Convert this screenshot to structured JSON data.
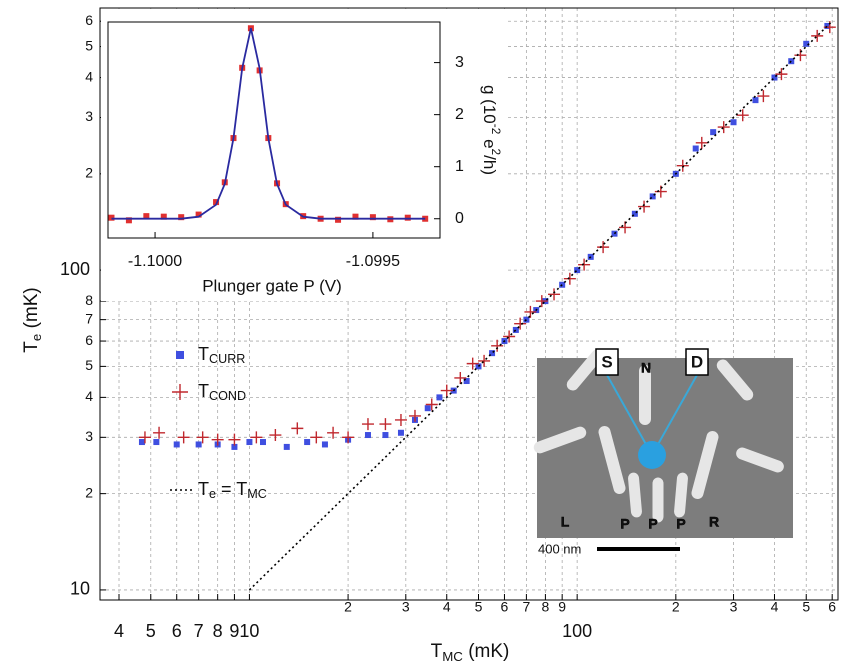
{
  "chart_data": [
    {
      "type": "scatter",
      "x_label": "TMC (mK)",
      "y_label": "Te (mK)",
      "log_x": true,
      "log_y": true,
      "grid": true,
      "xlim": [
        3.5,
        625
      ],
      "ylim": [
        9.3,
        660
      ],
      "xticks": [
        4,
        5,
        6,
        7,
        8,
        9,
        10,
        {
          "value": 20,
          "label": "2"
        },
        {
          "value": 30,
          "label": "3"
        },
        {
          "value": 40,
          "label": "4"
        },
        {
          "value": 50,
          "label": "5"
        },
        {
          "value": 60,
          "label": "6"
        },
        {
          "value": 70,
          "label": "7"
        },
        {
          "value": 80,
          "label": "8"
        },
        {
          "value": 90,
          "label": "9"
        },
        100,
        {
          "value": 200,
          "label": "2"
        },
        {
          "value": 300,
          "label": "3"
        },
        {
          "value": 400,
          "label": "4"
        },
        {
          "value": 500,
          "label": "5"
        },
        {
          "value": 600,
          "label": "6"
        }
      ],
      "yticks": [
        10,
        {
          "value": 20,
          "label": "2"
        },
        {
          "value": 30,
          "label": "3"
        },
        {
          "value": 40,
          "label": "4"
        },
        {
          "value": 50,
          "label": "5"
        },
        {
          "value": 60,
          "label": "6"
        },
        {
          "value": 70,
          "label": "7"
        },
        {
          "value": 80,
          "label": "8"
        },
        100,
        {
          "value": 200,
          "label": "2"
        },
        {
          "value": 300,
          "label": "3"
        },
        {
          "value": 400,
          "label": "4"
        },
        {
          "value": 500,
          "label": "5"
        },
        {
          "value": 600,
          "label": "6"
        }
      ],
      "series": [
        {
          "name": "TCURR",
          "color": "#3f4fe0",
          "marker": "square",
          "x": [
            4.7,
            5.2,
            6,
            7,
            8,
            9,
            10,
            11,
            13,
            15,
            17,
            20,
            23,
            26,
            29,
            32,
            35,
            38,
            42,
            46,
            50,
            55,
            60,
            65,
            70,
            75,
            80,
            90,
            100,
            110,
            130,
            150,
            170,
            200,
            230,
            260,
            300,
            350,
            400,
            450,
            500,
            580
          ],
          "values": [
            29,
            29,
            28.5,
            28.5,
            28.5,
            28,
            29,
            29,
            28,
            29,
            28.5,
            29.5,
            30.5,
            30.5,
            31,
            34,
            37,
            40,
            42,
            45,
            50,
            55,
            60,
            65,
            70,
            75,
            80,
            90,
            100,
            110,
            130,
            150,
            170,
            200,
            240,
            270,
            290,
            340,
            400,
            450,
            510,
            580
          ]
        },
        {
          "name": "TCOND",
          "color": "#c0282e",
          "marker": "plus",
          "x": [
            4.8,
            5.3,
            6.3,
            7.2,
            8,
            9,
            10.5,
            12,
            14,
            16,
            18,
            20,
            23,
            26,
            29,
            32,
            36,
            40,
            44,
            48,
            52,
            57,
            62,
            67,
            72,
            78,
            85,
            95,
            105,
            120,
            140,
            160,
            180,
            210,
            240,
            280,
            320,
            370,
            420,
            480,
            540,
            590
          ],
          "values": [
            30,
            31,
            30,
            30,
            29.5,
            29.5,
            30,
            30.5,
            32,
            30,
            31,
            30,
            33,
            33,
            34,
            35,
            38,
            42,
            46,
            51,
            52,
            58,
            62,
            68,
            74,
            80,
            84,
            94,
            104,
            118,
            136,
            158,
            176,
            212,
            250,
            280,
            305,
            350,
            410,
            470,
            540,
            575
          ]
        },
        {
          "name": "Te = TMC",
          "color": "#000000",
          "style": "dotted",
          "x": [
            10,
            600
          ],
          "values": [
            10,
            600
          ]
        }
      ]
    },
    {
      "type": "scatter",
      "x_label": "Plunger gate P (V)",
      "y2_label": "g (10-2 e2/h)",
      "xlim": [
        -1.100108,
        -1.099346
      ],
      "y2lim": [
        -0.37,
        3.78
      ],
      "xticks": [
        {
          "value": -1.1,
          "label": "-1.1000"
        },
        {
          "value": -1.0995,
          "label": "-1.0995"
        }
      ],
      "y2ticks": [
        0,
        1,
        2,
        3
      ],
      "x": [
        -1.1001,
        -1.10006,
        -1.10002,
        -1.09998,
        -1.09994,
        -1.0999,
        -1.09986,
        -1.09984,
        -1.09982,
        -1.0998,
        -1.09978,
        -1.09976,
        -1.09974,
        -1.09972,
        -1.0997,
        -1.09966,
        -1.09962,
        -1.09958,
        -1.09954,
        -1.0995,
        -1.09946,
        -1.09942,
        -1.09938
      ],
      "series": [
        {
          "color": "#e03030",
          "marker": "square",
          "axis": "y2",
          "values": [
            0.02,
            -0.03,
            0.05,
            0.04,
            0.03,
            0.08,
            0.32,
            0.7,
            1.55,
            2.9,
            3.66,
            2.85,
            1.55,
            0.68,
            0.28,
            0.05,
            0,
            -0.02,
            0.04,
            0.03,
            -0.01,
            0.02,
            0
          ]
        },
        {
          "color": "#2a2aa0",
          "style": "line",
          "axis": "y2",
          "values": [
            0,
            0,
            0,
            0,
            0,
            0.04,
            0.27,
            0.67,
            1.55,
            2.89,
            3.66,
            2.89,
            1.55,
            0.67,
            0.27,
            0.04,
            0,
            0,
            0,
            0,
            0,
            0,
            0
          ]
        }
      ]
    }
  ],
  "sem_image": {
    "labels": [
      "S",
      "D",
      "N",
      "L",
      "P",
      "P",
      "P",
      "R"
    ],
    "scale_bar": "400 nm"
  }
}
